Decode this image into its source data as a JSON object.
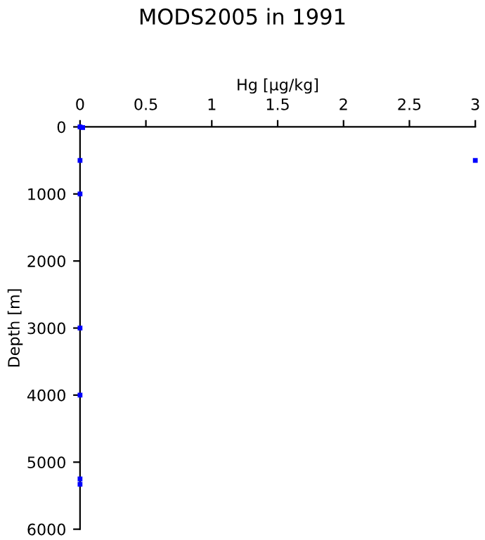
{
  "chart_data": {
    "type": "scatter",
    "title": "MODS2005 in 1991",
    "xlabel": "Hg [µg/kg]",
    "ylabel": "Depth [m]",
    "series": [
      {
        "color": "#0000ff",
        "x": [
          0.0,
          0.02,
          0.0,
          3.0,
          0.0,
          0.0,
          0.0,
          0.0,
          0.0
        ],
        "values": [
          0,
          10,
          500,
          500,
          1000,
          3000,
          4000,
          5250,
          5330
        ]
      }
    ],
    "xlim": [
      0,
      3
    ],
    "xticks": [
      0,
      0.5,
      1,
      1.5,
      2,
      2.5,
      3
    ],
    "ylim": [
      6000,
      0
    ],
    "yticks": [
      0,
      1000,
      2000,
      3000,
      4000,
      5000,
      6000
    ],
    "marker": "square",
    "grid": false
  }
}
